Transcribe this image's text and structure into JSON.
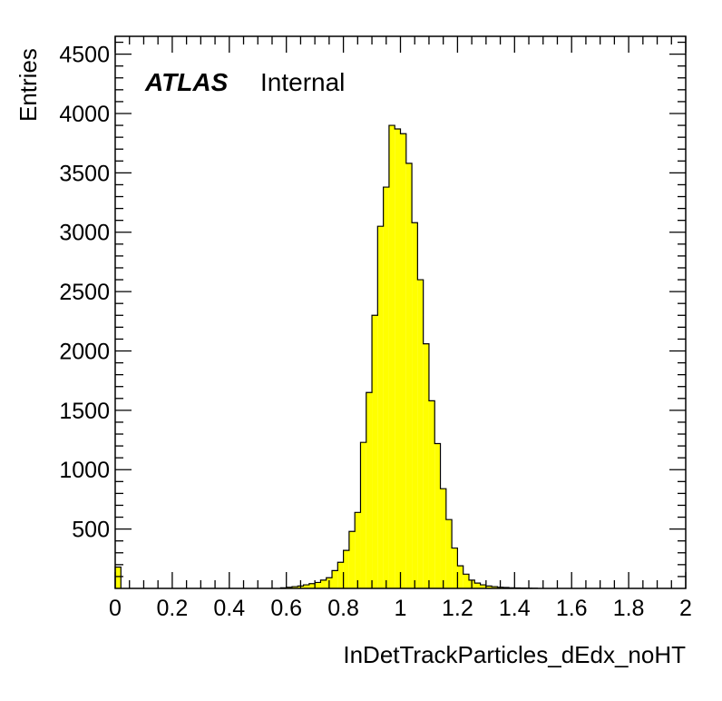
{
  "chart_data": {
    "type": "bar",
    "style": "histogram",
    "fill_color": "#ffff00",
    "line_color": "#000000",
    "xlabel": "InDetTrackParticles_dEdx_noHT",
    "ylabel": "Entries",
    "xlim": [
      0,
      2
    ],
    "ylim": [
      0,
      4650
    ],
    "bin_width": 0.02,
    "x_ticks": [
      "0",
      "0.2",
      "0.4",
      "0.6",
      "0.8",
      "1",
      "1.2",
      "1.4",
      "1.6",
      "1.8",
      "2"
    ],
    "y_ticks": [
      "500",
      "1000",
      "1500",
      "2000",
      "2500",
      "3000",
      "3500",
      "4000",
      "4500"
    ],
    "label_brand": "ATLAS",
    "label_status": "Internal",
    "bin_edges_start": [
      0.0,
      0.58,
      0.6,
      0.62,
      0.64,
      0.66,
      0.68,
      0.7,
      0.72,
      0.74,
      0.76,
      0.78,
      0.8,
      0.82,
      0.84,
      0.86,
      0.88,
      0.9,
      0.92,
      0.94,
      0.96,
      0.98,
      1.0,
      1.02,
      1.04,
      1.06,
      1.08,
      1.1,
      1.12,
      1.14,
      1.16,
      1.18,
      1.2,
      1.22,
      1.24,
      1.26,
      1.28,
      1.3,
      1.32,
      1.34,
      1.36,
      1.38,
      1.4,
      1.42,
      1.44,
      1.46
    ],
    "values": [
      180,
      5,
      10,
      15,
      20,
      30,
      40,
      50,
      70,
      90,
      150,
      220,
      320,
      480,
      640,
      1230,
      1650,
      2300,
      3050,
      3380,
      3900,
      3870,
      3830,
      3580,
      3080,
      2600,
      2060,
      1580,
      1220,
      840,
      580,
      340,
      190,
      120,
      70,
      45,
      30,
      20,
      15,
      10,
      8,
      5,
      4,
      3,
      2,
      1
    ]
  }
}
